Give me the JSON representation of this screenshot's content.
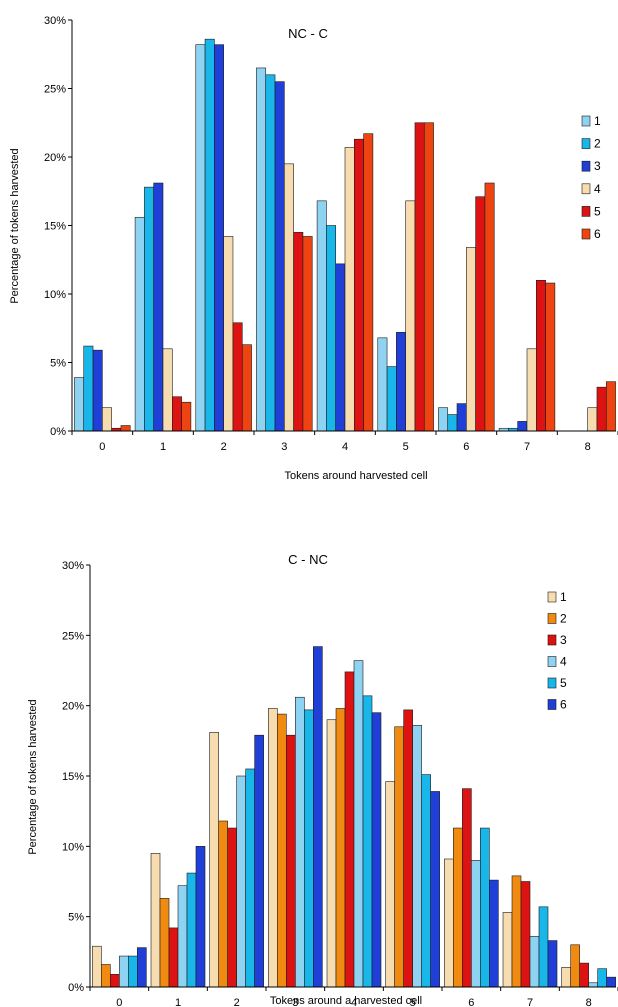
{
  "chart_data": [
    {
      "type": "bar",
      "title": "NC - C",
      "xlabel": "Tokens around harvested cell",
      "ylabel": "Percentage of tokens harvested",
      "categories": [
        "0",
        "1",
        "2",
        "3",
        "4",
        "5",
        "6",
        "7",
        "8"
      ],
      "ylim": [
        0,
        30
      ],
      "yticks": [
        "0%",
        "5%",
        "10%",
        "15%",
        "20%",
        "25%",
        "30%"
      ],
      "legend_position": "right",
      "series": [
        {
          "name": "1",
          "color": "#8fd3f2",
          "values": [
            3.9,
            15.6,
            28.2,
            26.5,
            16.8,
            6.8,
            1.7,
            0.2,
            0
          ]
        },
        {
          "name": "2",
          "color": "#19b6ea",
          "values": [
            6.2,
            17.8,
            28.6,
            26.0,
            15.0,
            4.7,
            1.2,
            0.2,
            0
          ]
        },
        {
          "name": "3",
          "color": "#1f3fd6",
          "values": [
            5.9,
            18.1,
            28.2,
            25.5,
            12.2,
            7.2,
            2.0,
            0.7,
            0
          ]
        },
        {
          "name": "4",
          "color": "#f7dcb0",
          "values": [
            1.7,
            6.0,
            14.2,
            19.5,
            20.7,
            16.8,
            13.4,
            6.0,
            1.7
          ]
        },
        {
          "name": "5",
          "color": "#dd1313",
          "values": [
            0.2,
            2.5,
            7.9,
            14.5,
            21.3,
            22.5,
            17.1,
            11.0,
            3.2
          ]
        },
        {
          "name": "6",
          "color": "#ee4411",
          "values": [
            0.4,
            2.1,
            6.3,
            14.2,
            21.7,
            22.5,
            18.1,
            10.8,
            3.6
          ]
        }
      ]
    },
    {
      "type": "bar",
      "title": "C - NC",
      "xlabel": "Tokens around a harvested cell",
      "ylabel": "Percentage of tokens harvested",
      "categories": [
        "0",
        "1",
        "2",
        "3",
        "4",
        "5",
        "6",
        "7",
        "8"
      ],
      "ylim": [
        0,
        30
      ],
      "yticks": [
        "0%",
        "5%",
        "10%",
        "15%",
        "20%",
        "25%",
        "30%"
      ],
      "legend_position": "right",
      "series": [
        {
          "name": "1",
          "color": "#f7dcb0",
          "values": [
            2.9,
            9.5,
            18.1,
            19.8,
            19.0,
            14.6,
            9.1,
            5.3,
            1.4
          ]
        },
        {
          "name": "2",
          "color": "#f08a10",
          "values": [
            1.6,
            6.3,
            11.8,
            19.4,
            19.8,
            18.5,
            11.3,
            7.9,
            3.0
          ]
        },
        {
          "name": "3",
          "color": "#dd1313",
          "values": [
            0.9,
            4.2,
            11.3,
            17.9,
            22.4,
            19.7,
            14.1,
            7.5,
            1.7
          ]
        },
        {
          "name": "4",
          "color": "#8fd3f2",
          "values": [
            2.2,
            7.2,
            15.0,
            20.6,
            23.2,
            18.6,
            9.0,
            3.6,
            0.3
          ]
        },
        {
          "name": "5",
          "color": "#19b6ea",
          "values": [
            2.2,
            8.1,
            15.5,
            19.7,
            20.7,
            15.1,
            11.3,
            5.7,
            1.3
          ]
        },
        {
          "name": "6",
          "color": "#1f3fd6",
          "values": [
            2.8,
            10.0,
            17.9,
            24.2,
            19.5,
            13.9,
            7.6,
            3.3,
            0.7
          ]
        }
      ]
    }
  ]
}
